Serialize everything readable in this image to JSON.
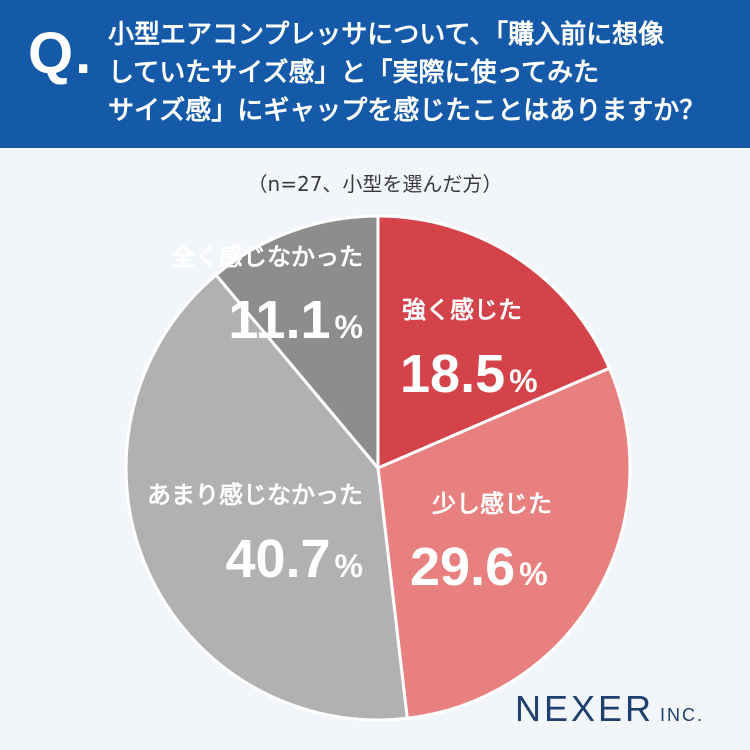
{
  "header": {
    "q_mark": "Q.",
    "question": "小型エアコンプレッサについて、「購入前に想像\nしていたサイズ感」と「実際に使ってみた\nサイズ感」にギャップを感じたことはありますか？"
  },
  "sample_note": "（n=27、小型を選んだ方）",
  "logo": {
    "name": "NEXER",
    "suffix": "INC."
  },
  "colors": {
    "header_bg": "#1559a9",
    "strong": "#d5434a",
    "slight": "#e98080",
    "not_much": "#b1b1b1",
    "not_at_all": "#8f8d8b"
  },
  "chart_data": {
    "type": "pie",
    "title": "",
    "slices": [
      {
        "label": "強く感じた",
        "value": 18.5,
        "value_text": "18.5",
        "color": "#d5434a"
      },
      {
        "label": "少し感じた",
        "value": 29.6,
        "value_text": "29.6",
        "color": "#e98080"
      },
      {
        "label": "あまり感じなかった",
        "value": 40.7,
        "value_text": "40.7",
        "color": "#b1b1b1"
      },
      {
        "label": "全く感じなかった",
        "value": 11.1,
        "value_text": "11.1",
        "color": "#8f8d8b"
      }
    ],
    "unit": "%",
    "start": "12 o'clock",
    "direction": "clockwise"
  }
}
